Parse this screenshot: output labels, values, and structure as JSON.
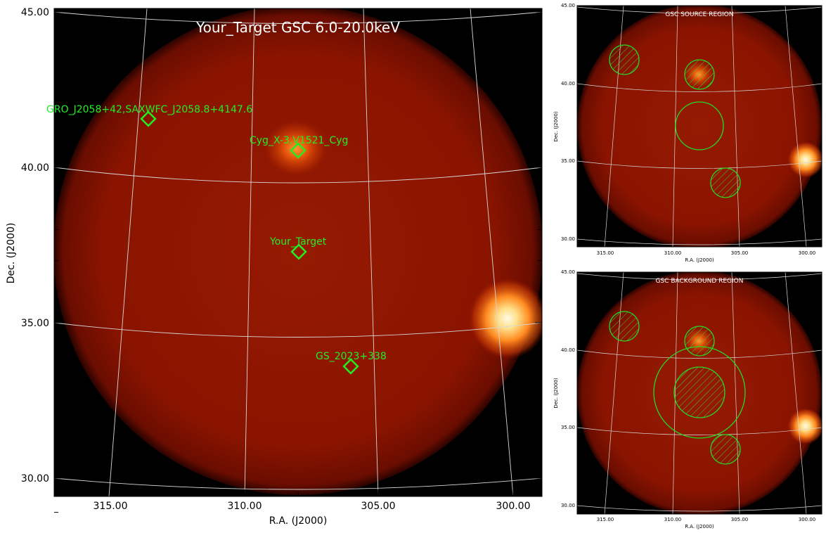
{
  "main": {
    "title": "Your_Target GSC 6.0-20.0keV",
    "x_label": "R.A. (J2000)",
    "y_label": "Dec. (J2000)",
    "x_ticks": [
      "315.00",
      "310.00",
      "305.00",
      "300.00"
    ],
    "y_ticks": [
      "45.00",
      "40.00",
      "35.00",
      "30.00"
    ],
    "sources": [
      {
        "label": "GRO_J2058+42,SAXWFC_J2058.8+4147.6"
      },
      {
        "label": "Cyg_X-3,V1521_Cyg"
      },
      {
        "label": "Your_Target"
      },
      {
        "label": "GS_2023+338"
      }
    ]
  },
  "source_panel": {
    "title": "GSC SOURCE REGION",
    "x_label": "R.A. (J2000)",
    "y_label": "Dec. (J2000)",
    "x_ticks": [
      "315.00",
      "310.00",
      "305.00",
      "300.00"
    ],
    "y_ticks": [
      "45.00",
      "40.00",
      "35.00",
      "30.00"
    ]
  },
  "background_panel": {
    "title": "GSC BACKGROUND REGION",
    "x_label": "R.A. (J2000)",
    "y_label": "Dec. (J2000)",
    "x_ticks": [
      "315.00",
      "310.00",
      "305.00",
      "300.00"
    ],
    "y_ticks": [
      "45.00",
      "40.00",
      "35.00",
      "30.00"
    ]
  },
  "colors": {
    "marker": "#22ee22",
    "grid": "#d8d8d8",
    "disk": "#8a1400",
    "frame_bg": "#000000"
  }
}
